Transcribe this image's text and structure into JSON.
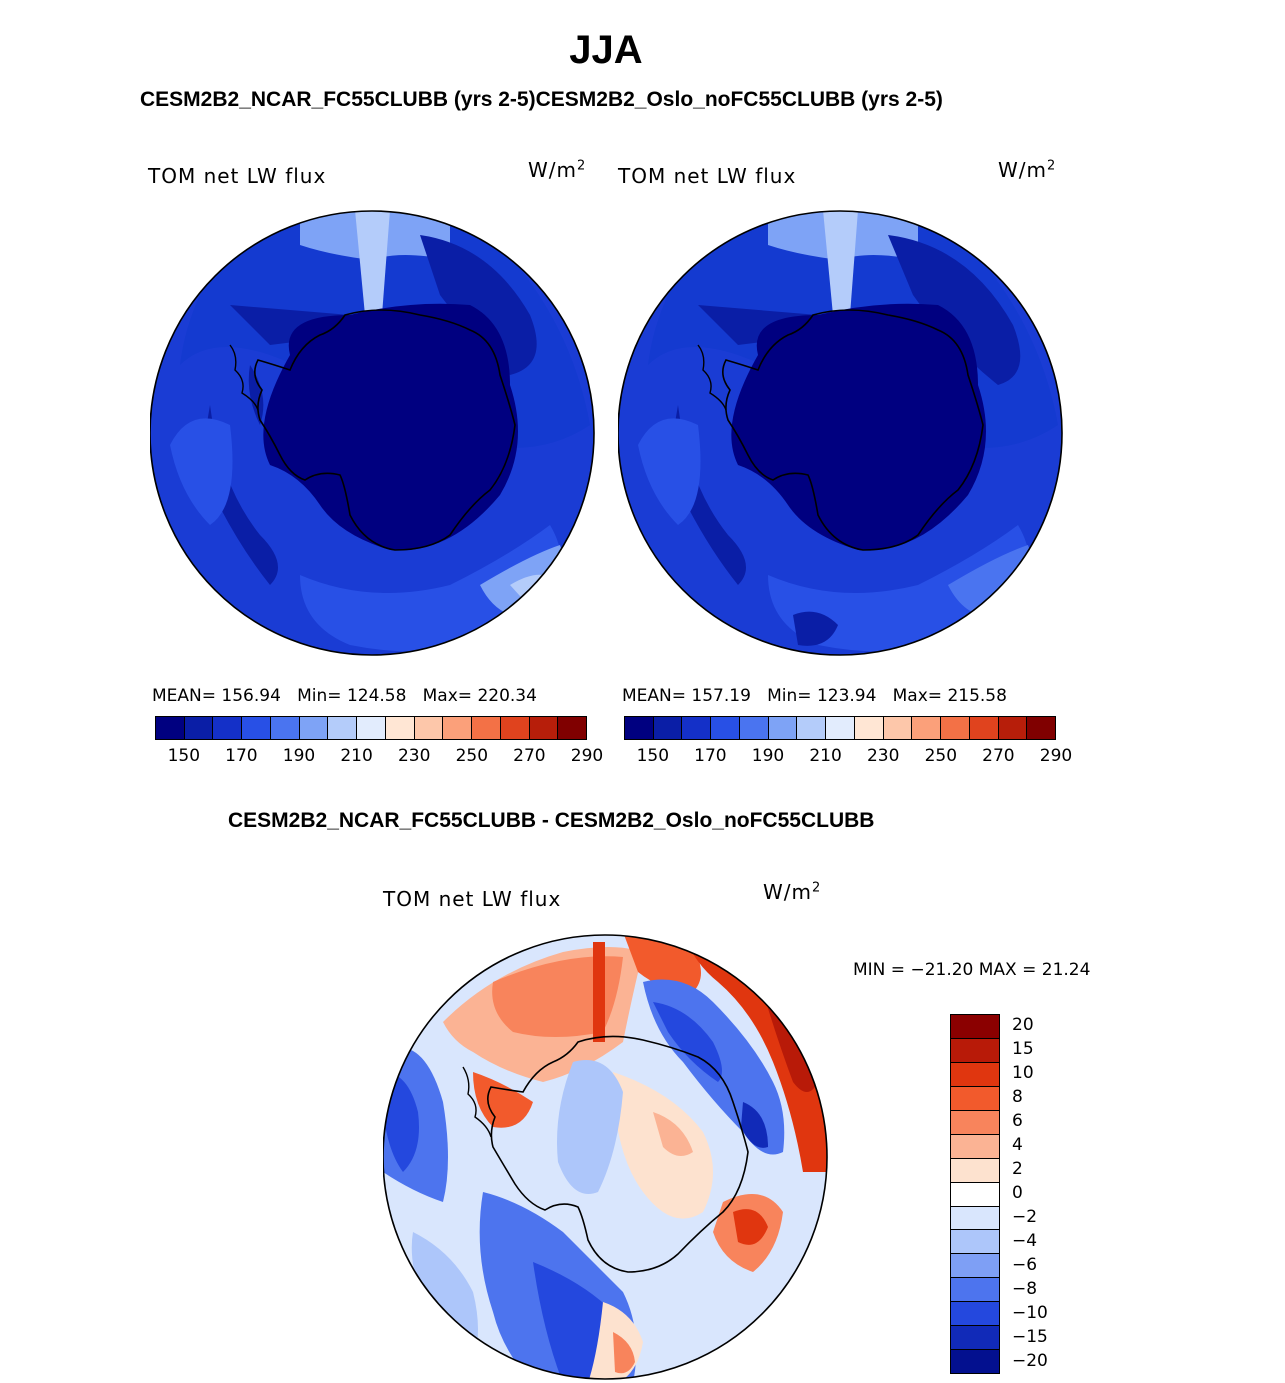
{
  "title": "JJA",
  "subtitle_top": "CESM2B2_NCAR_FC55CLUBB (yrs 2-5)CESM2B2_Oslo_noFC55CLUBB (yrs 2-5)",
  "subtitle_diff": "CESM2B2_NCAR_FC55CLUBB - CESM2B2_Oslo_noFC55CLUBB",
  "panels": [
    {
      "variable": "TOM net LW flux",
      "units_base": "W/m",
      "units_exp": "2",
      "mean_label": "MEAN=",
      "mean": "156.94",
      "min_label": "Min=",
      "min": "124.58",
      "max_label": "Max=",
      "max": "220.34"
    },
    {
      "variable": "TOM net LW flux",
      "units_base": "W/m",
      "units_exp": "2",
      "mean_label": "MEAN=",
      "mean": "157.19",
      "min_label": "Min=",
      "min": "123.94",
      "max_label": "Max=",
      "max": "215.58"
    }
  ],
  "abs_colorbar": {
    "colors": [
      "#000080",
      "#0a1ea6",
      "#1430c8",
      "#2850e6",
      "#4a74f0",
      "#7ea3f6",
      "#b4ccfa",
      "#e2ecfd",
      "#ffe6d4",
      "#fdc7aa",
      "#fba07a",
      "#f37146",
      "#e0431e",
      "#b71e0a",
      "#800000"
    ],
    "ticks": [
      "150",
      "170",
      "190",
      "210",
      "230",
      "250",
      "270",
      "290"
    ]
  },
  "diff_panel": {
    "variable": "TOM net LW flux",
    "units_base": "W/m",
    "units_exp": "2",
    "minmax": "MIN = −21.20 MAX =  21.24"
  },
  "diff_colorbar": {
    "colors": [
      "#8b0000",
      "#b81a08",
      "#e0360f",
      "#f25a2c",
      "#f8845c",
      "#fbb394",
      "#fde2cf",
      "#ffffff",
      "#d9e6fd",
      "#adc6fa",
      "#7e9ff5",
      "#4d74ee",
      "#2448de",
      "#112ab8",
      "#03108f"
    ],
    "labels": [
      "20",
      "15",
      "10",
      "8",
      "6",
      "4",
      "2",
      "0",
      "−2",
      "−4",
      "−6",
      "−8",
      "−10",
      "−15",
      "−20"
    ]
  },
  "chart_data": {
    "type": "map",
    "projection": "south polar stereographic",
    "region": "Antarctica / Southern Ocean",
    "season": "JJA",
    "variable": "TOM net LW flux",
    "units": "W/m2",
    "panels": [
      {
        "name": "CESM2B2_NCAR_FC55CLUBB (yrs 2-5)",
        "mean": 156.94,
        "min": 124.58,
        "max": 220.34
      },
      {
        "name": "CESM2B2_Oslo_noFC55CLUBB (yrs 2-5)",
        "mean": 157.19,
        "min": 123.94,
        "max": 215.58
      },
      {
        "name": "CESM2B2_NCAR_FC55CLUBB - CESM2B2_Oslo_noFC55CLUBB",
        "min": -21.2,
        "max": 21.24
      }
    ],
    "abs_levels": [
      150,
      160,
      170,
      180,
      190,
      200,
      210,
      220,
      230,
      240,
      250,
      260,
      270,
      280,
      290
    ],
    "diff_levels": [
      -20,
      -15,
      -10,
      -8,
      -6,
      -4,
      -2,
      0,
      2,
      4,
      6,
      8,
      10,
      15,
      20
    ]
  }
}
